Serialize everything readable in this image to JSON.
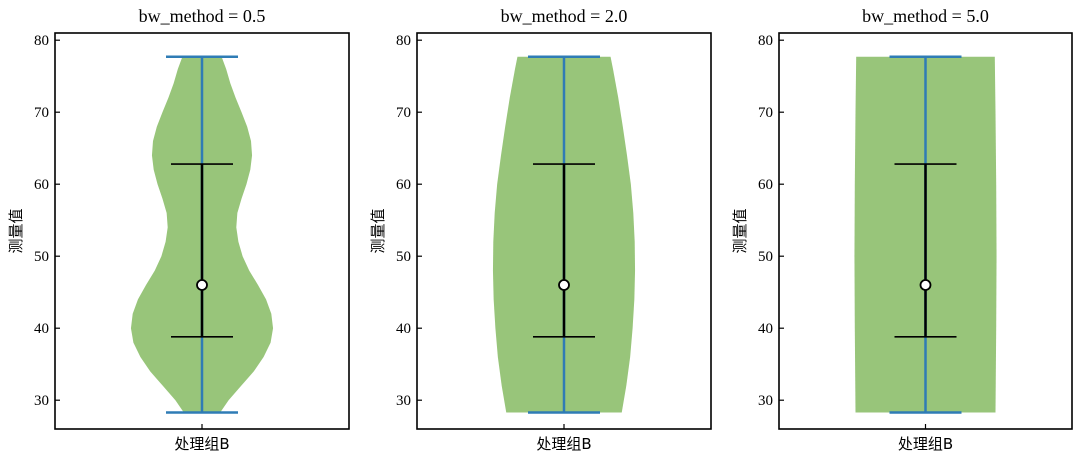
{
  "chart_data": [
    {
      "type": "violin",
      "title": "bw_method = 0.5",
      "ylabel": "测量值",
      "category": "处理组B",
      "ylim": [
        26,
        81
      ],
      "yticks": [
        30,
        40,
        50,
        60,
        70,
        80
      ],
      "stats": {
        "min": 28.3,
        "max": 77.7,
        "q1": 38.8,
        "q3": 62.8,
        "median": 46.0
      },
      "density": [
        [
          28.3,
          5.2
        ],
        [
          30,
          7.6
        ],
        [
          32,
          11.2
        ],
        [
          34,
          14.8
        ],
        [
          36,
          17.6
        ],
        [
          38,
          19.6
        ],
        [
          40,
          20.3
        ],
        [
          42,
          19.8
        ],
        [
          44,
          18.3
        ],
        [
          46,
          16.0
        ],
        [
          48,
          13.5
        ],
        [
          50,
          11.6
        ],
        [
          52,
          10.4
        ],
        [
          54,
          9.8
        ],
        [
          56,
          10.1
        ],
        [
          58,
          11.3
        ],
        [
          60,
          12.7
        ],
        [
          62,
          13.8
        ],
        [
          64,
          14.3
        ],
        [
          66,
          14.0
        ],
        [
          68,
          12.9
        ],
        [
          70,
          11.3
        ],
        [
          72,
          9.6
        ],
        [
          74,
          8.1
        ],
        [
          76,
          6.9
        ],
        [
          77.7,
          5.6
        ]
      ]
    },
    {
      "type": "violin",
      "title": "bw_method = 2.0",
      "ylabel": "测量值",
      "category": "处理组B",
      "ylim": [
        26,
        81
      ],
      "yticks": [
        30,
        40,
        50,
        60,
        70,
        80
      ],
      "stats": {
        "min": 28.3,
        "max": 77.7,
        "q1": 38.8,
        "q3": 62.8,
        "median": 46.0
      },
      "density": [
        [
          28.3,
          16.5
        ],
        [
          32,
          17.8
        ],
        [
          36,
          18.9
        ],
        [
          40,
          19.6
        ],
        [
          44,
          20.1
        ],
        [
          48,
          20.3
        ],
        [
          52,
          20.2
        ],
        [
          56,
          19.8
        ],
        [
          60,
          19.1
        ],
        [
          64,
          18.0
        ],
        [
          68,
          16.8
        ],
        [
          72,
          15.5
        ],
        [
          76,
          14.0
        ],
        [
          77.7,
          13.3
        ]
      ]
    },
    {
      "type": "violin",
      "title": "bw_method = 5.0",
      "ylabel": "测量值",
      "category": "处理组B",
      "ylim": [
        26,
        81
      ],
      "yticks": [
        30,
        40,
        50,
        60,
        70,
        80
      ],
      "stats": {
        "min": 28.3,
        "max": 77.7,
        "q1": 38.8,
        "q3": 62.8,
        "median": 46.0
      },
      "density": [
        [
          28.3,
          20.0
        ],
        [
          40,
          20.2
        ],
        [
          50,
          20.3
        ],
        [
          60,
          20.2
        ],
        [
          70,
          20.0
        ],
        [
          77.7,
          19.8
        ]
      ]
    }
  ],
  "colors": {
    "violin_fill": "#98c57a",
    "extrema_line": "#2f7cb5",
    "box_line": "#000000",
    "median_marker_fill": "#ffffff",
    "axes_frame": "#000000"
  }
}
